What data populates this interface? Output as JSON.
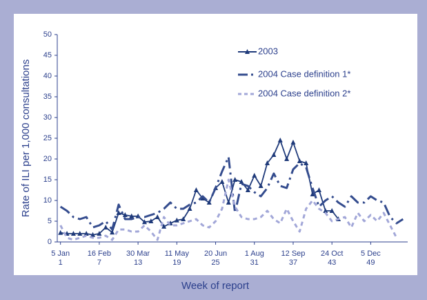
{
  "chart_data": {
    "type": "line",
    "ylabel": "Rate of ILI per 1,000 consultations",
    "xlabel": "Week of report",
    "x": [
      1,
      2,
      3,
      4,
      5,
      6,
      7,
      8,
      9,
      10,
      11,
      12,
      13,
      14,
      15,
      16,
      17,
      18,
      19,
      20,
      21,
      22,
      23,
      24,
      25,
      26,
      27,
      28,
      29,
      30,
      31,
      32,
      33,
      34,
      35,
      36,
      37,
      38,
      39,
      40,
      41,
      42,
      43,
      44,
      45,
      46,
      47,
      48,
      49,
      50,
      51,
      52,
      53,
      54
    ],
    "xlim": [
      0.5,
      56
    ],
    "xticks": [
      {
        "value": 1,
        "label": "5 Jan"
      },
      {
        "value": 7,
        "label": "16 Feb"
      },
      {
        "value": 13,
        "label": "30 Mar"
      },
      {
        "value": 19,
        "label": "11 May"
      },
      {
        "value": 25,
        "label": "20 Jun"
      },
      {
        "value": 31,
        "label": "1 Aug"
      },
      {
        "value": 37,
        "label": "12 Sep"
      },
      {
        "value": 43,
        "label": "24 Oct"
      },
      {
        "value": 49,
        "label": "5 Dec"
      }
    ],
    "ylim": [
      0,
      50
    ],
    "yticks": [
      0,
      5,
      10,
      15,
      20,
      25,
      30,
      35,
      40,
      45,
      50
    ],
    "series": [
      {
        "name": "2003",
        "color": "#1f3a7a",
        "values": [
          2.2,
          2,
          2,
          2,
          2,
          1.7,
          2,
          3.5,
          2.3,
          7,
          6.5,
          6.2,
          6.2,
          4.8,
          5,
          6,
          3.7,
          4.5,
          5.2,
          5.5,
          8,
          12.5,
          10.5,
          9.5,
          13,
          14.5,
          9.5,
          15,
          14.5,
          12.5,
          16,
          13.5,
          19,
          21,
          24.5,
          20,
          24,
          19.5,
          19,
          11.5,
          12.5,
          7.5,
          7.5,
          5.5,
          null,
          null,
          null,
          null,
          null,
          null,
          null,
          null,
          null,
          null
        ]
      },
      {
        "name": "2004 Case definition 1*",
        "color": "#344c8e",
        "values": [
          8.5,
          7.5,
          6,
          5.5,
          6,
          3.5,
          4,
          5,
          3,
          9,
          5.5,
          5.5,
          6,
          6,
          6.5,
          7,
          8,
          9.5,
          8,
          8,
          9,
          9.5,
          11,
          9.5,
          13,
          17,
          20.5,
          7,
          14,
          13.5,
          12,
          11,
          13,
          16.5,
          13.5,
          13,
          17.5,
          19,
          18,
          13,
          8.5,
          10,
          11,
          9.5,
          8.5,
          11,
          9.5,
          9.5,
          11,
          10,
          9.5,
          6,
          4.5,
          5.5
        ]
      },
      {
        "name": "2004 Case definition 2*",
        "color": "#a2a7d8",
        "values": [
          4,
          1,
          0.5,
          1,
          1.5,
          1,
          1,
          1.5,
          0.5,
          3,
          3,
          2.5,
          2.5,
          4,
          2.5,
          0.5,
          6,
          4,
          4,
          4.5,
          5,
          5.5,
          4,
          3.5,
          5,
          8,
          15,
          8.5,
          6,
          5.5,
          5.5,
          6,
          7.5,
          5.5,
          4.5,
          8,
          5,
          2.5,
          8,
          10,
          8,
          7,
          5,
          5.5,
          6,
          3.5,
          7,
          5,
          6.5,
          5,
          7,
          4,
          1,
          null
        ]
      }
    ]
  }
}
